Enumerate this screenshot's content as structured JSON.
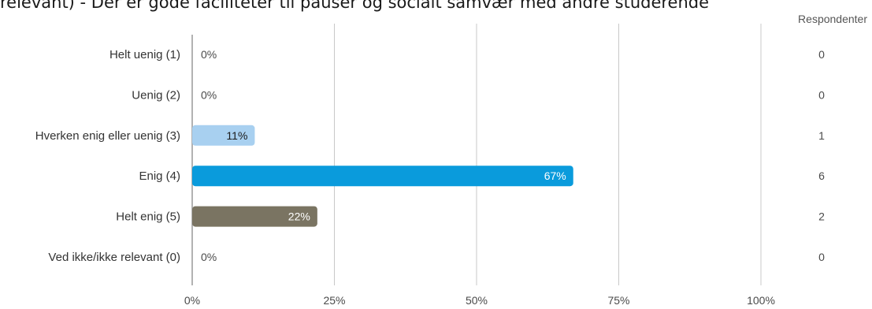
{
  "title": "relevant) - Der er gode faciliteter til pauser og socialt samvær med andre studerende",
  "respondents_header": "Respondenter",
  "colors": {
    "grid": "#c8c8c8",
    "axis": "#999999",
    "label": "#4a4a4a",
    "light_blue": "#a8d0f0",
    "blue": "#0a9bdc",
    "olive": "#7a7462"
  },
  "chart_data": {
    "type": "bar",
    "orientation": "horizontal",
    "categories": [
      "Helt uenig (1)",
      "Uenig (2)",
      "Hverken enig eller uenig (3)",
      "Enig (4)",
      "Helt enig (5)",
      "Ved ikke/ikke relevant (0)"
    ],
    "values": [
      0,
      0,
      11,
      67,
      22,
      0
    ],
    "value_labels": [
      "0%",
      "0%",
      "11%",
      "67%",
      "22%",
      "0%"
    ],
    "respondents": [
      "0",
      "0",
      "1",
      "6",
      "2",
      "0"
    ],
    "bar_colors": [
      "#a8d0f0",
      "#a8d0f0",
      "#a8d0f0",
      "#0a9bdc",
      "#7a7462",
      "#a8d0f0"
    ],
    "label_colors": [
      "#4a4a4a",
      "#4a4a4a",
      "#1a1a1a",
      "#ffffff",
      "#ffffff",
      "#4a4a4a"
    ],
    "x_ticks": [
      "0%",
      "25%",
      "50%",
      "75%",
      "100%"
    ],
    "xlim": [
      0,
      100
    ],
    "grid": true,
    "legend": "none"
  }
}
